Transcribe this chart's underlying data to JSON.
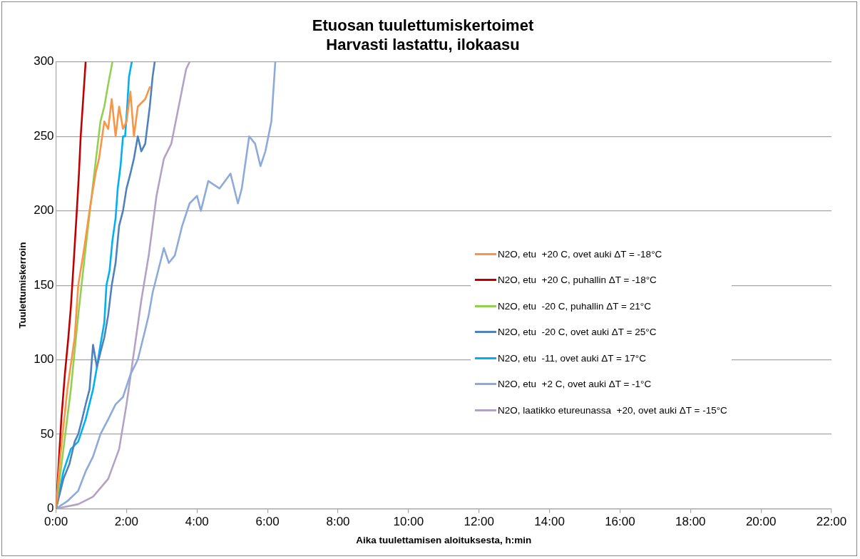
{
  "chart_data": {
    "type": "line",
    "title": "Etuosan tuulettumiskertoimet\nHarvasti lastattu, ilokaasu",
    "xlabel": "Aika tuulettamisen aloituksesta, h:min",
    "ylabel": "Tuulettumiskerroin",
    "xlim": [
      0,
      22
    ],
    "xticks": [
      {
        "value": 0,
        "label": "0:00"
      },
      {
        "value": 2,
        "label": "2:00"
      },
      {
        "value": 4,
        "label": "4:00"
      },
      {
        "value": 6,
        "label": "6:00"
      },
      {
        "value": 8,
        "label": "8:00"
      },
      {
        "value": 10,
        "label": "10:00"
      },
      {
        "value": 12,
        "label": "12:00"
      },
      {
        "value": 14,
        "label": "14:00"
      },
      {
        "value": 16,
        "label": "16:00"
      },
      {
        "value": 18,
        "label": "18:00"
      },
      {
        "value": 20,
        "label": "20:00"
      },
      {
        "value": 22,
        "label": "22:00"
      }
    ],
    "ylim": [
      0,
      300
    ],
    "yticks": [
      0,
      50,
      100,
      150,
      200,
      250,
      300
    ],
    "grid": "y",
    "legend": "right",
    "line_style": "solid",
    "series": [
      {
        "name": "N2O, etu  +20 C, ovet auki ΔT = -18°C",
        "color": "#f79646",
        "x": [
          0,
          0.1,
          0.32,
          0.53,
          0.63,
          0.8,
          0.95,
          1.12,
          1.22,
          1.37,
          1.48,
          1.58,
          1.69,
          1.79,
          1.9,
          2.0,
          2.11,
          2.21,
          2.32,
          2.53,
          2.66
        ],
        "values": [
          0,
          30,
          80,
          115,
          150,
          175,
          200,
          225,
          235,
          260,
          255,
          275,
          250,
          270,
          255,
          260,
          280,
          250,
          270,
          275,
          283
        ]
      },
      {
        "name": "N2O, etu  +20 C, puhallin ΔT = -18°C",
        "color": "#c00000",
        "x": [
          0,
          0.05,
          0.15,
          0.25,
          0.35,
          0.42,
          0.5,
          0.59,
          0.65,
          0.7,
          0.77,
          0.84
        ],
        "values": [
          0,
          20,
          60,
          90,
          115,
          135,
          165,
          200,
          225,
          250,
          275,
          300
        ]
      },
      {
        "name": "N2O, etu  -20 C, puhallin ΔT = 21°C",
        "color": "#92d050",
        "x": [
          0,
          0.21,
          0.42,
          0.63,
          0.84,
          1.01,
          1.16,
          1.26,
          1.37,
          1.48,
          1.6
        ],
        "values": [
          0,
          40,
          80,
          130,
          175,
          210,
          240,
          260,
          270,
          285,
          300
        ]
      },
      {
        "name": "N2O, etu  -20 C, ovet auki ΔT = 25°C",
        "color": "#4f81bd",
        "x": [
          0,
          0.21,
          0.38,
          0.53,
          0.63,
          0.74,
          0.84,
          0.95,
          1.05,
          1.16,
          1.26,
          1.37,
          1.48,
          1.58,
          1.69,
          1.79,
          1.9,
          2.0,
          2.11,
          2.21,
          2.32,
          2.42,
          2.53,
          2.66,
          2.74,
          2.8
        ],
        "values": [
          0,
          20,
          30,
          45,
          50,
          60,
          70,
          80,
          110,
          95,
          105,
          115,
          130,
          150,
          165,
          190,
          200,
          215,
          225,
          235,
          250,
          240,
          245,
          270,
          290,
          300
        ]
      },
      {
        "name": "N2O, etu  -11, ovet auki ΔT = 17°C",
        "color": "#00b0f0",
        "x": [
          0,
          0.21,
          0.42,
          0.63,
          0.84,
          1.05,
          1.16,
          1.26,
          1.37,
          1.43,
          1.52,
          1.6,
          1.69,
          1.75,
          1.83,
          1.9,
          1.96,
          2.02,
          2.07,
          2.15
        ],
        "values": [
          0,
          25,
          40,
          45,
          60,
          80,
          95,
          110,
          125,
          150,
          160,
          180,
          195,
          215,
          230,
          250,
          250,
          270,
          290,
          300
        ]
      },
      {
        "name": "N2O, etu  +2 C, ovet auki ΔT = -1°C",
        "color": "#8eaadb",
        "x": [
          0,
          0.32,
          0.63,
          0.84,
          1.05,
          1.26,
          1.48,
          1.69,
          1.9,
          2.11,
          2.32,
          2.53,
          2.63,
          2.74,
          2.9,
          3.06,
          3.2,
          3.37,
          3.58,
          3.79,
          4.0,
          4.11,
          4.32,
          4.64,
          4.95,
          5.16,
          5.27,
          5.48,
          5.65,
          5.8,
          5.94,
          6.11,
          6.22
        ],
        "values": [
          0,
          5,
          12,
          25,
          35,
          50,
          60,
          70,
          75,
          90,
          100,
          120,
          130,
          145,
          160,
          175,
          165,
          170,
          190,
          205,
          210,
          200,
          220,
          215,
          225,
          205,
          215,
          250,
          245,
          230,
          240,
          260,
          300
        ]
      },
      {
        "name": "N2O, laatikko etureunassa  +20, ovet auki ΔT = -15°C",
        "color": "#b3a2c7",
        "x": [
          0,
          0.63,
          1.05,
          1.48,
          1.79,
          2.0,
          2.21,
          2.42,
          2.63,
          2.85,
          3.06,
          3.27,
          3.48,
          3.69,
          3.79
        ],
        "values": [
          0,
          3,
          8,
          20,
          40,
          70,
          105,
          140,
          170,
          210,
          235,
          245,
          270,
          295,
          300
        ]
      }
    ]
  }
}
